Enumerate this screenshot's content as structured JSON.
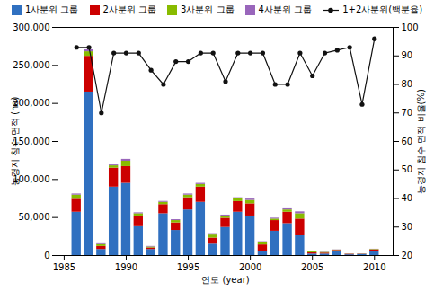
{
  "chart_data": {
    "type": "bar",
    "stacked": true,
    "grid": false,
    "legend": "top",
    "xlabel": "연도 (year)",
    "ylabel": "농경지 침수 면적 (ha)",
    "y2label": "농경지 침수 면적 비율(%)",
    "x": [
      1986,
      1987,
      1988,
      1989,
      1990,
      1991,
      1992,
      1993,
      1994,
      1995,
      1996,
      1997,
      1998,
      1999,
      2000,
      2001,
      2002,
      2003,
      2004,
      2005,
      2006,
      2007,
      2008,
      2009,
      2010
    ],
    "xlim": [
      1984.5,
      2011.5
    ],
    "xticks": [
      1985,
      1990,
      1995,
      2000,
      2005,
      2010
    ],
    "ylim": [
      0,
      300000
    ],
    "yticks": [
      0,
      {
        "value": 50000,
        "label": "50,000"
      },
      {
        "value": 100000,
        "label": "100,000"
      },
      {
        "value": 150000,
        "label": "150,000"
      },
      {
        "value": 200000,
        "label": "200,000"
      },
      {
        "value": 250000,
        "label": "250,000"
      },
      {
        "value": 300000,
        "label": "300,000"
      }
    ],
    "y2lim": [
      20,
      100
    ],
    "y2ticks": [
      20,
      30,
      40,
      50,
      60,
      70,
      80,
      90,
      100
    ],
    "series": [
      {
        "name": "1사분위 그룹",
        "color": "#3070c0",
        "values": [
          57000,
          215000,
          8000,
          90000,
          95000,
          38000,
          8000,
          55000,
          33000,
          60000,
          70000,
          15000,
          37000,
          57000,
          52000,
          5000,
          32000,
          42000,
          26000,
          2000,
          2000,
          6000,
          1000,
          1500,
          5500
        ]
      },
      {
        "name": "2사분위 그룹",
        "color": "#cc0000",
        "values": [
          17000,
          47000,
          4000,
          25000,
          22000,
          14000,
          2000,
          12000,
          10000,
          16000,
          20000,
          8000,
          12000,
          14000,
          16000,
          9000,
          14000,
          15000,
          22000,
          1500,
          1200,
          800,
          700,
          400,
          2000
        ]
      },
      {
        "name": "3사분위 그룹",
        "color": "#88bb00",
        "values": [
          5500,
          6000,
          2500,
          3000,
          7000,
          3000,
          1200,
          3000,
          3000,
          3500,
          3500,
          4000,
          3000,
          3500,
          4500,
          3000,
          2000,
          3000,
          7000,
          1200,
          800,
          400,
          300,
          250,
          600
        ]
      },
      {
        "name": "4사분위 그룹",
        "color": "#9966bb",
        "values": [
          1500,
          2500,
          1000,
          1200,
          2500,
          1200,
          800,
          1200,
          1200,
          1500,
          1500,
          1800,
          1200,
          1500,
          1800,
          1200,
          1200,
          1500,
          2500,
          600,
          400,
          250,
          200,
          150,
          250
        ]
      },
      {
        "name": "1+2사분위(백분율)",
        "type": "line",
        "axis": "y2",
        "color": "#111111",
        "marker": "circle",
        "values": [
          93,
          93,
          70,
          91,
          91,
          91,
          85,
          80,
          88,
          88,
          91,
          91,
          81,
          91,
          91,
          91,
          80,
          80,
          91,
          83,
          91,
          92,
          93,
          73,
          96
        ]
      }
    ]
  }
}
